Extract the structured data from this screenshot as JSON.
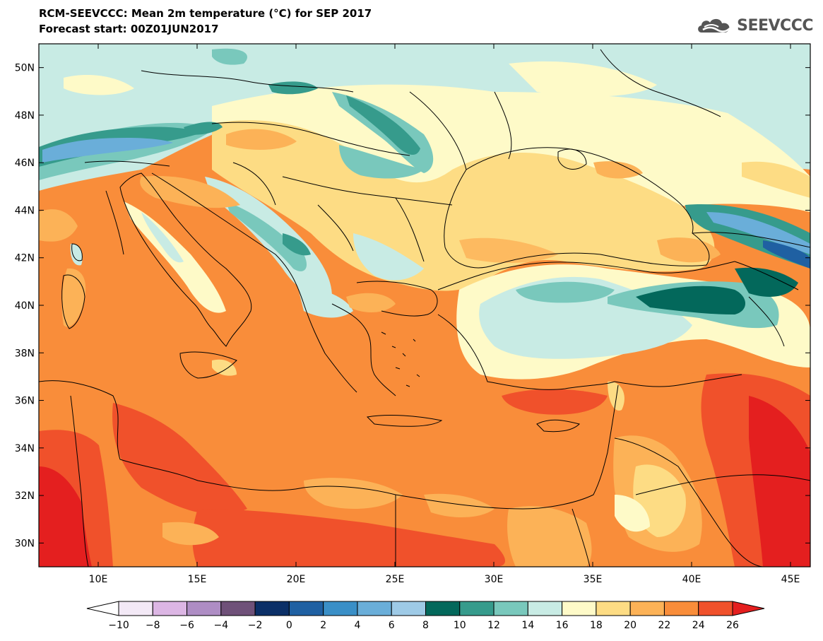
{
  "title": "RCM-SEEVCCC: Mean 2m temperature (°C) for SEP 2017",
  "subtitle": "Forecast start: 00Z01JUN2017",
  "logo": {
    "text": "SEEVCCC",
    "icon": "cloud-icon",
    "color": "#555555"
  },
  "map": {
    "lat_ticks": [
      "50N",
      "48N",
      "46N",
      "44N",
      "42N",
      "40N",
      "38N",
      "36N",
      "34N",
      "32N",
      "30N"
    ],
    "lon_ticks": [
      "10E",
      "15E",
      "20E",
      "25E",
      "30E",
      "35E",
      "40E",
      "45E"
    ],
    "lat_range": [
      29,
      51
    ],
    "lon_range": [
      7,
      46
    ]
  },
  "colorbar": {
    "labels": [
      "-10",
      "-8",
      "-6",
      "-4",
      "-2",
      "0",
      "2",
      "4",
      "6",
      "8",
      "10",
      "12",
      "14",
      "16",
      "18",
      "20",
      "22",
      "24",
      "26"
    ],
    "under_color": "#ffffff",
    "over_color": "#e41f1f",
    "colors": [
      "#f3e9f6",
      "#dcb6e4",
      "#ae8dc4",
      "#6f5179",
      "#0b2f67",
      "#1f60a2",
      "#3a8fc7",
      "#6aaed9",
      "#9ecae6",
      "#03685b",
      "#369b8c",
      "#79c8bc",
      "#c8ebe4",
      "#fefac8",
      "#fddc84",
      "#fcb257",
      "#f98d3a",
      "#f0512b"
    ]
  }
}
